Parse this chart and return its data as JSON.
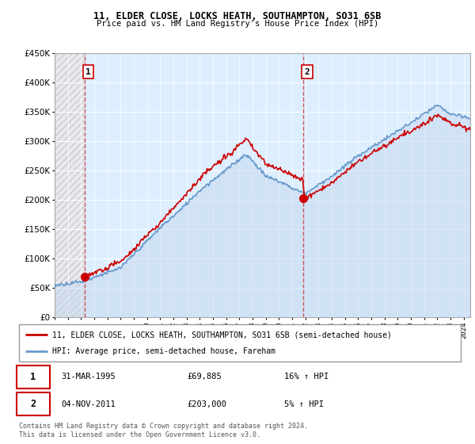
{
  "title1": "11, ELDER CLOSE, LOCKS HEATH, SOUTHAMPTON, SO31 6SB",
  "title2": "Price paid vs. HM Land Registry's House Price Index (HPI)",
  "property_label": "11, ELDER CLOSE, LOCKS HEATH, SOUTHAMPTON, SO31 6SB (semi-detached house)",
  "hpi_label": "HPI: Average price, semi-detached house, Fareham",
  "annotation1_date": "31-MAR-1995",
  "annotation1_price": "£69,885",
  "annotation1_hpi": "16% ↑ HPI",
  "annotation2_date": "04-NOV-2011",
  "annotation2_price": "£203,000",
  "annotation2_hpi": "5% ↑ HPI",
  "footer": "Contains HM Land Registry data © Crown copyright and database right 2024.\nThis data is licensed under the Open Government Licence v3.0.",
  "property_color": "#cc0000",
  "hpi_color": "#6699cc",
  "hpi_fill_color": "#c5d8ee",
  "background_plot": "#ddeeff",
  "ylim": [
    0,
    450000
  ],
  "yticks": [
    0,
    50000,
    100000,
    150000,
    200000,
    250000,
    300000,
    350000,
    400000,
    450000
  ],
  "xmin": 1993,
  "xmax": 2024.5,
  "sale1_x": 1995.25,
  "sale1_y": 69885,
  "sale2_x": 2011.84,
  "sale2_y": 203000
}
